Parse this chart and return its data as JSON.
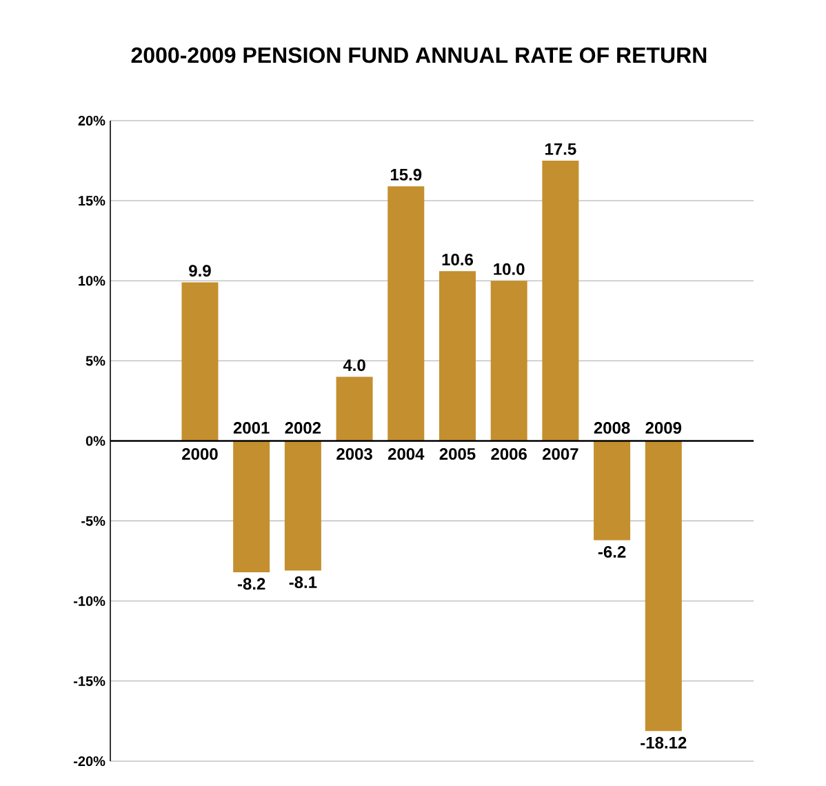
{
  "chart_data": {
    "type": "bar",
    "title": "2000-2009 PENSION FUND ANNUAL RATE OF RETURN",
    "categories": [
      "2000",
      "2001",
      "2002",
      "2003",
      "2004",
      "2005",
      "2006",
      "2007",
      "2008",
      "2009"
    ],
    "values": [
      9.9,
      -8.2,
      -8.1,
      4.0,
      15.9,
      10.6,
      10.0,
      17.5,
      -6.2,
      -18.12
    ],
    "value_labels": [
      "9.9",
      "-8.2",
      "-8.1",
      "4.0",
      "15.9",
      "10.6",
      "10.0",
      "17.5",
      "-6.2",
      "-18.12"
    ],
    "color": "#c48f2e",
    "ylim": [
      -20,
      20
    ],
    "yticks": [
      {
        "value": -20,
        "label": "-20%"
      },
      {
        "value": -15,
        "label": "-15%"
      },
      {
        "value": -10,
        "label": "-10%"
      },
      {
        "value": -5,
        "label": "-5%"
      },
      {
        "value": 0,
        "label": "0%"
      },
      {
        "value": 5,
        "label": "5%"
      },
      {
        "value": 10,
        "label": "10%"
      },
      {
        "value": 15,
        "label": "15%"
      },
      {
        "value": 20,
        "label": "20%"
      }
    ],
    "grid": "y"
  }
}
